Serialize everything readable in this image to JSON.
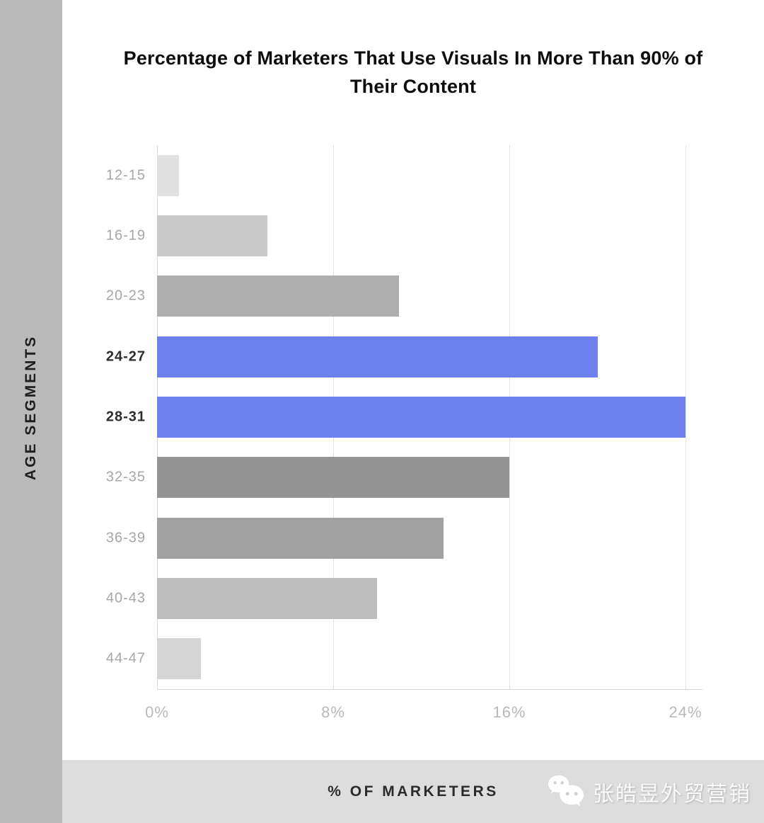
{
  "title": "Percentage of Marketers That Use Visuals In More Than 90% of Their Content",
  "ylabel": "AGE SEGMENTS",
  "xlabel": "% OF MARKETERS",
  "watermark": {
    "icon": "wechat-icon",
    "text": "张皓昱外贸营销"
  },
  "colors": {
    "background": "#ffffff",
    "left_strip": "#bababa",
    "bottom_band": "#dddddd",
    "highlight_blue": "#6e80ee",
    "gridline": "#e2e2e2",
    "label_gray": "#a6a6a6",
    "label_dark": "#2d2d2d",
    "tick_gray": "#b9b9b9"
  },
  "chart_data": {
    "type": "bar",
    "orientation": "horizontal",
    "title": "Percentage of Marketers That Use Visuals In More Than 90% of Their Content",
    "xlabel": "% OF MARKETERS",
    "ylabel": "AGE SEGMENTS",
    "categories": [
      "12-15",
      "16-19",
      "20-23",
      "24-27",
      "28-31",
      "32-35",
      "36-39",
      "40-43",
      "44-47"
    ],
    "values": [
      1,
      5,
      11,
      20,
      24,
      16,
      13,
      10,
      2
    ],
    "bar_colors": [
      "#e0e0e0",
      "#c9c9c9",
      "#aeaeae",
      "#6e80ee",
      "#6e80ee",
      "#949494",
      "#a2a2a2",
      "#bdbdbd",
      "#d5d5d5"
    ],
    "highlighted_categories": [
      "24-27",
      "28-31"
    ],
    "xlim": [
      0,
      24
    ],
    "xticks": [
      "0%",
      "8%",
      "16%",
      "24%"
    ],
    "xtick_values": [
      0,
      8,
      16,
      24
    ],
    "grid": true,
    "legend": false
  }
}
